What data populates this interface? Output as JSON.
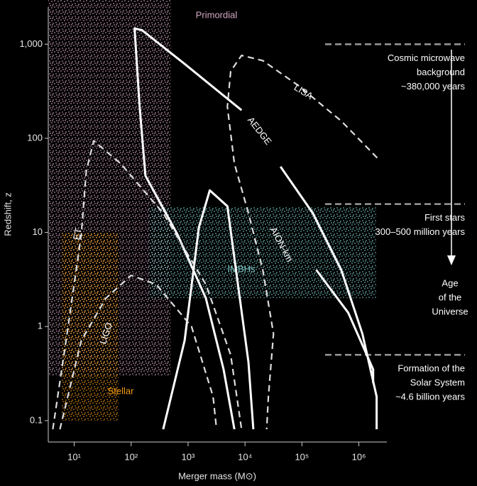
{
  "chart_data": {
    "type": "line",
    "x_label": "Merger mass (M⊙)",
    "y_label": "Redshift, z",
    "xscale": "log",
    "yscale": "log",
    "xlim": [
      3.5,
      3100000
    ],
    "ylim": [
      0.081,
      2950
    ],
    "xticks": [
      {
        "value": 10,
        "label": "10¹"
      },
      {
        "value": 100,
        "label": "10²"
      },
      {
        "value": 1000,
        "label": "10³"
      },
      {
        "value": 10000,
        "label": "10⁴"
      },
      {
        "value": 100000,
        "label": "10⁵"
      },
      {
        "value": 1000000,
        "label": "10⁶"
      }
    ],
    "yticks": [
      {
        "value": 1000,
        "label": "1,000"
      },
      100,
      10,
      1,
      0.1
    ],
    "regions": [
      {
        "name": "Primordial",
        "color": "#d6a8c4",
        "xrange": [
          3.5,
          500
        ],
        "yrange": [
          0.3,
          2950
        ]
      },
      {
        "name": "IMBHs",
        "color": "#80c8c8",
        "xrange": [
          205,
          2000000
        ],
        "yrange": [
          2,
          19
        ]
      },
      {
        "name": "Stellar",
        "color": "#f39a12",
        "xrange": [
          6,
          60
        ],
        "yrange": [
          0.1,
          10
        ]
      }
    ],
    "series": [
      {
        "name": "LISA",
        "color": "#dddddd",
        "dashed": true,
        "x": [
          2100000,
          490000,
          87000,
          20500,
          8700,
          5600,
          4900,
          6500,
          11500,
          20500,
          31600,
          25700,
          24000
        ],
        "values": [
          62,
          153,
          363,
          670,
          760,
          516,
          217,
          54,
          16,
          4.0,
          0.84,
          0.18,
          0.081
        ]
      },
      {
        "name": "AEDGE",
        "color": "#ffffff",
        "dashed": false,
        "x": [
          8700,
          870,
          155,
          115,
          141,
          178,
          650,
          2050,
          4200,
          6500
        ],
        "values": [
          199,
          617,
          1410,
          1470,
          217,
          40,
          9.5,
          2.0,
          0.35,
          0.081
        ]
      },
      {
        "name": "AION-km",
        "color": "#ffffff",
        "dashed": false,
        "x": [
          365,
          870,
          1550,
          2400,
          4900,
          7500,
          11500,
          14000
        ],
        "values": [
          0.081,
          0.71,
          11.3,
          28,
          19,
          2.8,
          0.42,
          0.081
        ]
      },
      {
        "name": "ET",
        "color": "#dddddd",
        "dashed": true,
        "x": [
          4.2,
          7.5,
          13.3,
          16.3,
          22,
          65,
          365,
          2050,
          5600,
          8700
        ],
        "values": [
          0.081,
          0.84,
          9.5,
          45,
          94,
          54,
          16,
          2.8,
          0.5,
          0.081
        ]
      },
      {
        "name": "LIGO",
        "color": "#dddddd",
        "dashed": true,
        "x": [
          5.6,
          13.3,
          36,
          100,
          275,
          1150,
          2750,
          3160
        ],
        "values": [
          0.081,
          0.71,
          2.0,
          3.5,
          2.8,
          1,
          0.18,
          0.081
        ]
      }
    ],
    "extra_lines": [
      {
        "color": "#ffffff",
        "x": [
          42000,
          155000,
          490000,
          1150000,
          2050000,
          2050000
        ],
        "values": [
          50,
          16,
          4.0,
          0.84,
          0.18,
          0.081
        ]
      },
      {
        "color": "#ffffff",
        "x": [
          178000,
          650000,
          1780000,
          1780000
        ],
        "values": [
          4.0,
          1.4,
          0.35,
          0.25
        ]
      }
    ],
    "epochs": [
      {
        "z": 1000,
        "label": [
          "Cosmic microwave",
          "background",
          "~380,000 years"
        ]
      },
      {
        "z": 20,
        "label": [
          "First stars",
          "300–500 million years"
        ]
      },
      {
        "z": 0.5,
        "label": [
          "Formation of the",
          "Solar System",
          "~4.6 billion years"
        ]
      }
    ],
    "arrow_label": [
      "Age",
      "of the",
      "Universe"
    ]
  }
}
